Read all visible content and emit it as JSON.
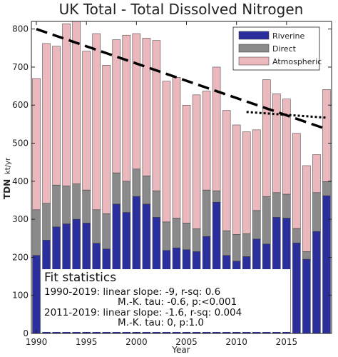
{
  "chart_data": {
    "type": "bar",
    "stacked": true,
    "title": "UK Total - Total Dissolved Nitrogen",
    "xlabel": "Year",
    "ylabel": "TDN",
    "ylabel_unit": "kt/yr",
    "xlim": [
      1990,
      2019
    ],
    "ylim": [
      0,
      820
    ],
    "x_ticks": [
      1990,
      1995,
      2000,
      2005,
      2010,
      2015
    ],
    "y_ticks": [
      0,
      100,
      200,
      300,
      400,
      500,
      600,
      700,
      800
    ],
    "grid": false,
    "legend_position": "top-right",
    "x": [
      1990,
      1991,
      1992,
      1993,
      1994,
      1995,
      1996,
      1997,
      1998,
      1999,
      2000,
      2001,
      2002,
      2003,
      2004,
      2005,
      2006,
      2007,
      2008,
      2009,
      2010,
      2011,
      2012,
      2013,
      2014,
      2015,
      2016,
      2017,
      2018,
      2019
    ],
    "series": [
      {
        "name": "Riverine",
        "color": "#2b2f9e",
        "values": [
          205,
          245,
          280,
          288,
          300,
          290,
          237,
          222,
          340,
          318,
          360,
          340,
          305,
          218,
          225,
          220,
          215,
          255,
          345,
          205,
          190,
          202,
          248,
          235,
          305,
          303,
          238,
          195,
          268,
          362
        ]
      },
      {
        "name": "Direct",
        "color": "#8a8a8a",
        "values": [
          120,
          97,
          110,
          100,
          93,
          87,
          88,
          93,
          82,
          82,
          72,
          74,
          70,
          75,
          78,
          70,
          60,
          122,
          30,
          65,
          70,
          60,
          75,
          125,
          65,
          63,
          38,
          20,
          102,
          37
        ]
      },
      {
        "name": "Atmospheric",
        "color": "#ebb8bd",
        "values": [
          345,
          420,
          365,
          426,
          427,
          365,
          463,
          390,
          350,
          384,
          356,
          362,
          395,
          370,
          370,
          310,
          352,
          260,
          325,
          316,
          288,
          268,
          212,
          307,
          260,
          250,
          250,
          226,
          100,
          242
        ]
      }
    ],
    "trend_lines": [
      {
        "from": [
          1990,
          800
        ],
        "to": [
          2019,
          537
        ],
        "style": "dashed"
      },
      {
        "from": [
          2011,
          582
        ],
        "to": [
          2019,
          567
        ],
        "style": "dotted"
      }
    ],
    "fit_statistics": {
      "heading": "Fit statistics",
      "lines": [
        "1990-2019: linear slope: -9, r-sq: 0.6",
        "M.-K. tau: -0.6, p:<0.001",
        "2011-2019: linear slope: -1.6, r-sq: 0.004",
        "M.-K. tau: 0, p:1.0"
      ]
    }
  }
}
